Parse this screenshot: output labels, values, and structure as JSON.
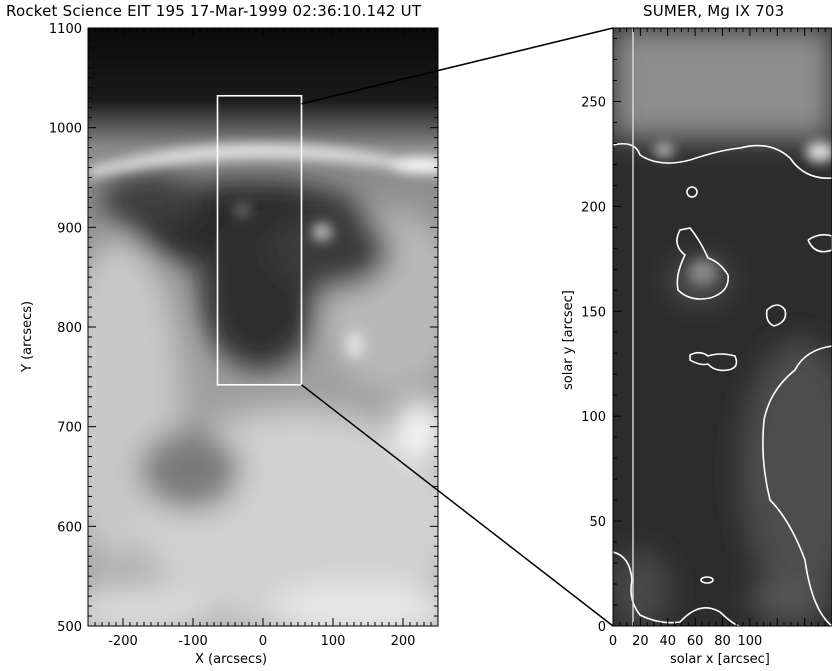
{
  "left_panel": {
    "title": "Rocket Science EIT 195 17-Mar-1999 02:36:10.142 UT",
    "xlabel": "X (arcsecs)",
    "ylabel": "Y (arcsecs)",
    "xticks": [
      "-200",
      "-100",
      "0",
      "100",
      "200"
    ],
    "yticks": [
      "500",
      "600",
      "700",
      "800",
      "900",
      "1000",
      "1100"
    ],
    "x_range": [
      -250,
      250
    ],
    "y_range": [
      500,
      1100
    ],
    "zoom_box": {
      "x": [
        -65,
        55
      ],
      "y": [
        742,
        1032
      ]
    }
  },
  "right_panel": {
    "title": "SUMER, Mg IX 703",
    "xlabel": "solar x [arcsec]",
    "ylabel": "solar y [arcsec]",
    "xticks": [
      "0",
      "20",
      "40",
      "60",
      "80",
      "100"
    ],
    "yticks": [
      "0",
      "50",
      "100",
      "150",
      "200",
      "250"
    ],
    "x_range": [
      0,
      160
    ],
    "y_range": [
      0,
      285
    ]
  },
  "colors": {
    "frame": "#000000",
    "overlay": "#ffffff",
    "background": "#ffffff"
  }
}
